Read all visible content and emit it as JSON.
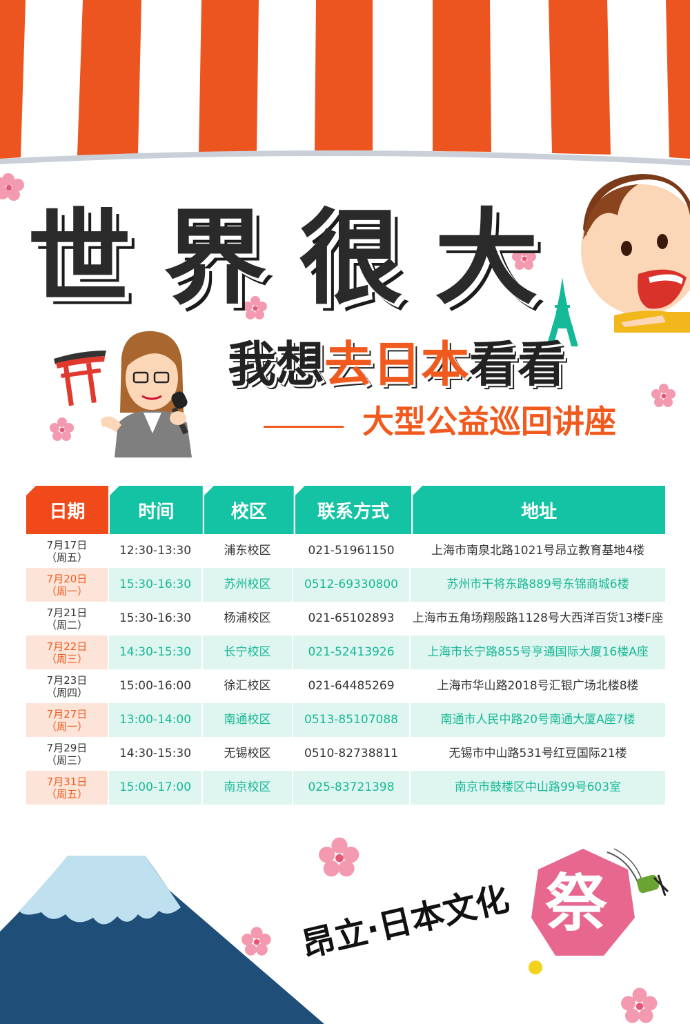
{
  "title": [
    "世",
    "界",
    "很",
    "大"
  ],
  "subtitle": {
    "part1": "我想",
    "part2": "去日本",
    "part3": "看看"
  },
  "tagline": "大型公益巡回讲座",
  "table": {
    "headers": [
      "日期",
      "时间",
      "校区",
      "联系方式",
      "地址"
    ],
    "rows": [
      {
        "date": "7月17日",
        "weekday": "（周五）",
        "time": "12:30-13:30",
        "campus": "浦东校区",
        "phone": "021-51961150",
        "address": "上海市南泉北路1021号昂立教育基地4楼"
      },
      {
        "date": "7月20日",
        "weekday": "（周一）",
        "time": "15:30-16:30",
        "campus": "苏州校区",
        "phone": "0512-69330800",
        "address": "苏州市干将东路889号东锦商城6楼"
      },
      {
        "date": "7月21日",
        "weekday": "（周二）",
        "time": "15:30-16:30",
        "campus": "杨浦校区",
        "phone": "021-65102893",
        "address": "上海市五角场翔殷路1128号大西洋百货13楼F座"
      },
      {
        "date": "7月22日",
        "weekday": "（周三）",
        "time": "14:30-15:30",
        "campus": "长宁校区",
        "phone": "021-52413926",
        "address": "上海市长宁路855号亨通国际大厦16楼A座"
      },
      {
        "date": "7月23日",
        "weekday": "（周四）",
        "time": "15:00-16:00",
        "campus": "徐汇校区",
        "phone": "021-64485269",
        "address": "上海市华山路2018号汇银广场北楼8楼"
      },
      {
        "date": "7月27日",
        "weekday": "（周一）",
        "time": "13:00-14:00",
        "campus": "南通校区",
        "phone": "0513-85107088",
        "address": "南通市人民中路20号南通大厦A座7楼"
      },
      {
        "date": "7月29日",
        "weekday": "（周三）",
        "time": "14:30-15:30",
        "campus": "无锡校区",
        "phone": "0510-82738811",
        "address": "无锡市中山路531号红豆国际21楼"
      },
      {
        "date": "7月31日",
        "weekday": "（周五）",
        "time": "15:00-17:00",
        "campus": "南京校区",
        "phone": "025-83721398",
        "address": "南京市鼓楼区中山路99号603室"
      }
    ]
  },
  "brand": "昂立·日本文化",
  "festival": "祭",
  "colors": {
    "orange": "#f05a1e",
    "teal": "#14c3a3",
    "light_teal": "#dff5ef",
    "light_orange": "#fde4d8",
    "awning_red": "#ec5520",
    "fuji_blue": "#1f4e79"
  }
}
